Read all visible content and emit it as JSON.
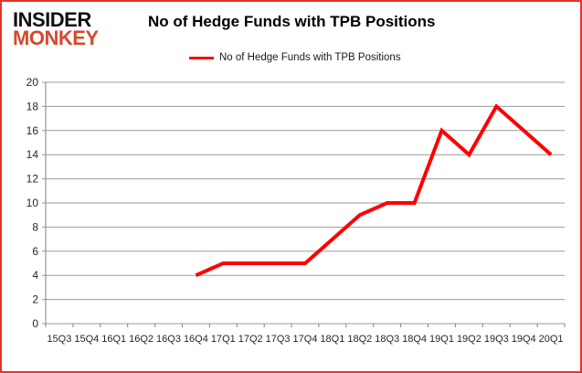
{
  "logo": {
    "line1": "INSIDER",
    "line2": "MONKEY"
  },
  "header": {
    "title": "No of Hedge Funds with TPB Positions"
  },
  "legend": {
    "label": "No of Hedge Funds with TPB Positions"
  },
  "colors": {
    "line": "#ff0000",
    "grid": "#9b9b9b",
    "axis": "#808080",
    "tick_text": "#262626",
    "logo_red": "#d6492e",
    "border_red": "#e2352b"
  },
  "chart_data": {
    "type": "line",
    "title": "No of Hedge Funds with TPB Positions",
    "categories": [
      "15Q3",
      "15Q4",
      "16Q1",
      "16Q2",
      "16Q3",
      "16Q4",
      "17Q1",
      "17Q2",
      "17Q3",
      "17Q4",
      "18Q1",
      "18Q2",
      "18Q3",
      "18Q4",
      "19Q1",
      "19Q2",
      "19Q3",
      "19Q4",
      "20Q1"
    ],
    "series": [
      {
        "name": "No of Hedge Funds with TPB Positions",
        "color": "#ff0000",
        "values": [
          null,
          null,
          null,
          null,
          null,
          4,
          5,
          5,
          5,
          5,
          7,
          9,
          10,
          10,
          16,
          14,
          18,
          16,
          14
        ]
      }
    ],
    "xlabel": "",
    "ylabel": "",
    "ylim": [
      0,
      20
    ],
    "ytick_step": 2,
    "grid": "horizontal",
    "legend_position": "top"
  }
}
